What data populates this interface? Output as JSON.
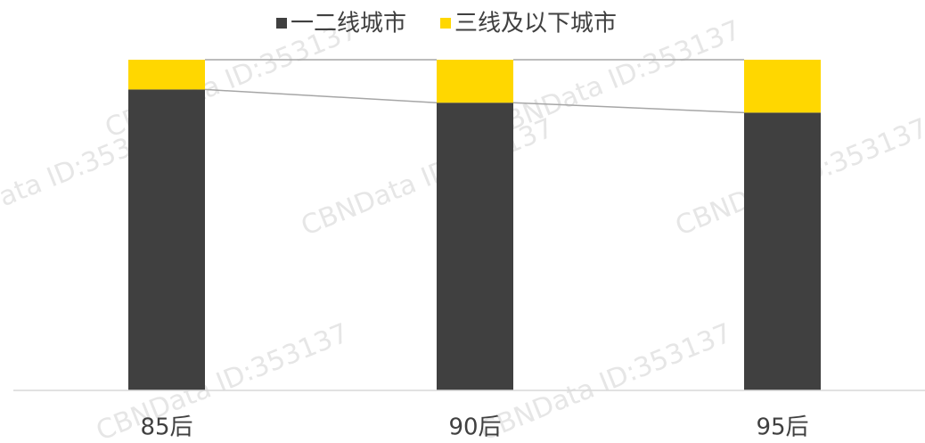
{
  "chart_data": {
    "type": "stacked_bar_100",
    "categories": [
      "85后",
      "90后",
      "95后"
    ],
    "series": [
      {
        "name": "一二线城市",
        "color": "#404040",
        "values": [
          91,
          87,
          84
        ]
      },
      {
        "name": "三线及以下城市",
        "color": "#FFD700",
        "values": [
          9,
          13,
          16
        ]
      }
    ],
    "ylim": [
      0,
      100
    ],
    "watermark": "CBNData ID:353137"
  }
}
